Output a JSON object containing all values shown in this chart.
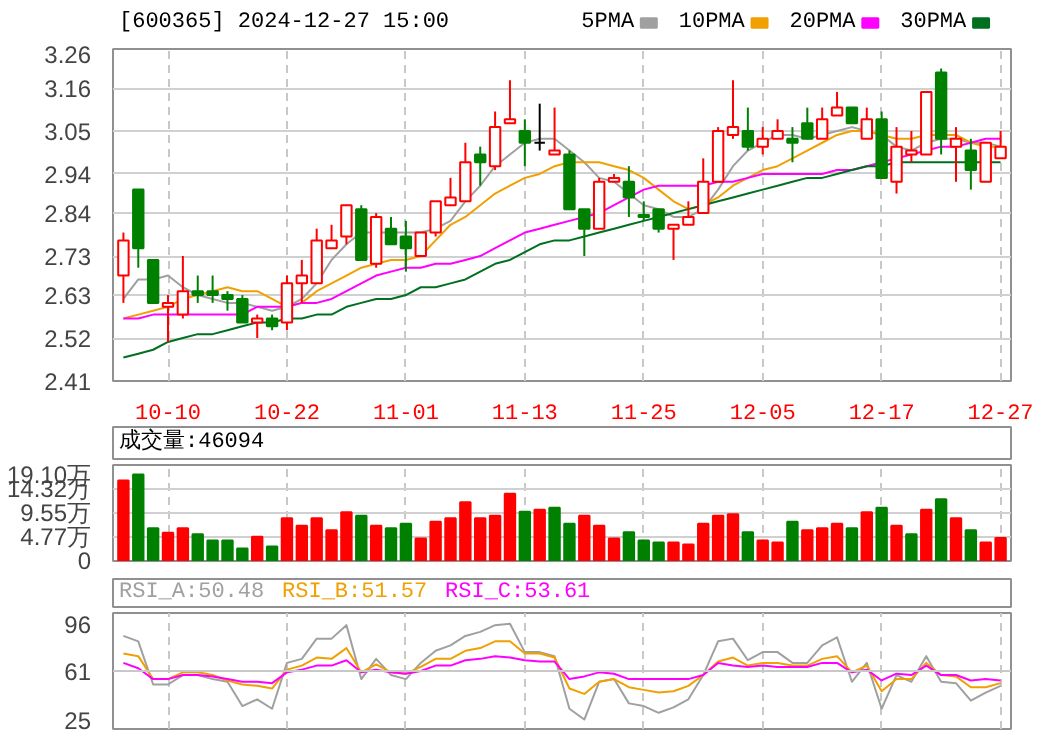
{
  "chart_data": [
    {
      "type": "candlestick",
      "title": "[600365] 2024-12-27 15:00",
      "categories": [
        null,
        null,
        null,
        "10-10",
        null,
        null,
        null,
        null,
        null,
        null,
        null,
        "10-22",
        null,
        null,
        null,
        null,
        null,
        null,
        null,
        "11-01",
        null,
        null,
        null,
        null,
        null,
        null,
        null,
        "11-13",
        null,
        null,
        null,
        null,
        null,
        null,
        null,
        "11-25",
        null,
        null,
        null,
        null,
        null,
        null,
        null,
        "12-05",
        null,
        null,
        null,
        null,
        null,
        null,
        null,
        "12-17",
        null,
        null,
        null,
        null,
        null,
        null,
        null,
        "12-27"
      ],
      "ohlc": [
        [
          2.68,
          2.79,
          2.61,
          2.77
        ],
        [
          2.9,
          2.9,
          2.7,
          2.75
        ],
        [
          2.72,
          2.72,
          2.61,
          2.61
        ],
        [
          2.6,
          2.63,
          2.51,
          2.61
        ],
        [
          2.58,
          2.73,
          2.57,
          2.64
        ],
        [
          2.64,
          2.68,
          2.61,
          2.63
        ],
        [
          2.64,
          2.68,
          2.61,
          2.63
        ],
        [
          2.63,
          2.64,
          2.59,
          2.62
        ],
        [
          2.62,
          2.63,
          2.56,
          2.56
        ],
        [
          2.56,
          2.58,
          2.52,
          2.57
        ],
        [
          2.57,
          2.58,
          2.54,
          2.55
        ],
        [
          2.56,
          2.68,
          2.54,
          2.66
        ],
        [
          2.66,
          2.72,
          2.61,
          2.68
        ],
        [
          2.66,
          2.8,
          2.66,
          2.77
        ],
        [
          2.75,
          2.81,
          2.75,
          2.77
        ],
        [
          2.78,
          2.86,
          2.76,
          2.86
        ],
        [
          2.85,
          2.86,
          2.72,
          2.72
        ],
        [
          2.71,
          2.84,
          2.7,
          2.83
        ],
        [
          2.8,
          2.83,
          2.76,
          2.76
        ],
        [
          2.78,
          2.82,
          2.69,
          2.75
        ],
        [
          2.73,
          2.79,
          2.73,
          2.79
        ],
        [
          2.79,
          2.87,
          2.78,
          2.87
        ],
        [
          2.86,
          2.93,
          2.86,
          2.88
        ],
        [
          2.87,
          3.02,
          2.87,
          2.97
        ],
        [
          2.99,
          3.01,
          2.91,
          2.97
        ],
        [
          2.96,
          3.1,
          2.95,
          3.06
        ],
        [
          3.07,
          3.18,
          3.07,
          3.08
        ],
        [
          3.05,
          3.08,
          2.96,
          3.02
        ],
        [
          3.02,
          3.12,
          3.0,
          3.02
        ],
        [
          2.99,
          3.11,
          2.99,
          3.0
        ],
        [
          2.99,
          3.0,
          2.85,
          2.85
        ],
        [
          2.85,
          2.85,
          2.73,
          2.8
        ],
        [
          2.8,
          2.93,
          2.8,
          2.92
        ],
        [
          2.92,
          2.94,
          2.92,
          2.93
        ],
        [
          2.92,
          2.96,
          2.83,
          2.88
        ],
        [
          2.835,
          2.87,
          2.82,
          2.83
        ],
        [
          2.85,
          2.85,
          2.79,
          2.8
        ],
        [
          2.8,
          2.81,
          2.72,
          2.81
        ],
        [
          2.81,
          2.87,
          2.81,
          2.83
        ],
        [
          2.84,
          2.98,
          2.84,
          2.92
        ],
        [
          2.92,
          3.06,
          2.92,
          3.05
        ],
        [
          3.04,
          3.18,
          3.03,
          3.06
        ],
        [
          3.05,
          3.11,
          3.0,
          3.01
        ],
        [
          3.01,
          3.06,
          2.99,
          3.03
        ],
        [
          3.03,
          3.08,
          3.03,
          3.05
        ],
        [
          3.03,
          3.06,
          2.97,
          3.02
        ],
        [
          3.07,
          3.11,
          3.03,
          3.03
        ],
        [
          3.03,
          3.11,
          3.03,
          3.08
        ],
        [
          3.09,
          3.15,
          3.09,
          3.11
        ],
        [
          3.11,
          3.11,
          3.07,
          3.07
        ],
        [
          3.03,
          3.11,
          3.03,
          3.08
        ],
        [
          3.08,
          3.1,
          2.93,
          2.93
        ],
        [
          2.92,
          3.06,
          2.89,
          3.01
        ],
        [
          2.99,
          3.05,
          2.97,
          3.0
        ],
        [
          2.99,
          3.15,
          2.99,
          3.15
        ],
        [
          3.2,
          3.21,
          2.99,
          3.03
        ],
        [
          3.01,
          3.06,
          2.92,
          3.03
        ],
        [
          3.0,
          3.03,
          2.9,
          2.95
        ],
        [
          2.92,
          3.02,
          2.92,
          3.02
        ],
        [
          2.98,
          3.05,
          2.98,
          3.01
        ]
      ],
      "colors": [
        "#ff0000",
        "#008000",
        "#008000",
        "#ff0000",
        "#ff0000",
        "#008000",
        "#008000",
        "#008000",
        "#008000",
        "#ff0000",
        "#008000",
        "#ff0000",
        "#ff0000",
        "#ff0000",
        "#ff0000",
        "#ff0000",
        "#008000",
        "#ff0000",
        "#008000",
        "#008000",
        "#ff0000",
        "#ff0000",
        "#ff0000",
        "#ff0000",
        "#008000",
        "#ff0000",
        "#ff0000",
        "#008000",
        "#000000",
        "#ff0000",
        "#008000",
        "#008000",
        "#ff0000",
        "#ff0000",
        "#008000",
        "#008000",
        "#008000",
        "#ff0000",
        "#ff0000",
        "#ff0000",
        "#ff0000",
        "#ff0000",
        "#008000",
        "#ff0000",
        "#ff0000",
        "#008000",
        "#008000",
        "#ff0000",
        "#ff0000",
        "#008000",
        "#ff0000",
        "#008000",
        "#ff0000",
        "#ff0000",
        "#ff0000",
        "#008000",
        "#ff0000",
        "#008000",
        "#ff0000",
        "#ff0000"
      ],
      "ylim": [
        2.41,
        3.26
      ],
      "yticks": [
        2.41,
        2.52,
        2.63,
        2.73,
        2.84,
        2.94,
        3.05,
        3.16,
        3.26
      ],
      "grid": true,
      "legend": "top right",
      "series": [
        {
          "name": "5PMA",
          "type": "line",
          "color": "#a0a0a0",
          "values": [
            2.62,
            2.67,
            2.67,
            2.68,
            2.65,
            2.63,
            2.62,
            2.61,
            2.61,
            2.6,
            2.59,
            2.6,
            2.62,
            2.66,
            2.72,
            2.76,
            2.79,
            2.79,
            2.79,
            2.79,
            2.79,
            2.8,
            2.82,
            2.87,
            2.91,
            2.96,
            2.99,
            3.02,
            3.03,
            3.03,
            3.0,
            2.97,
            2.93,
            2.92,
            2.89,
            2.86,
            2.85,
            2.83,
            2.83,
            2.85,
            2.9,
            2.96,
            3.0,
            3.02,
            3.04,
            3.04,
            3.03,
            3.04,
            3.05,
            3.06,
            3.05,
            3.04,
            3.01,
            3.0,
            3.02,
            3.03,
            3.03,
            3.02,
            3.02,
            3.01
          ]
        },
        {
          "name": "10PMA",
          "type": "line",
          "color": "#f0a000",
          "values": [
            2.57,
            2.58,
            2.59,
            2.6,
            2.62,
            2.63,
            2.64,
            2.65,
            2.64,
            2.64,
            2.62,
            2.6,
            2.61,
            2.64,
            2.66,
            2.68,
            2.7,
            2.71,
            2.72,
            2.72,
            2.73,
            2.77,
            2.81,
            2.83,
            2.86,
            2.89,
            2.91,
            2.93,
            2.94,
            2.96,
            2.97,
            2.97,
            2.97,
            2.96,
            2.95,
            2.93,
            2.9,
            2.87,
            2.85,
            2.86,
            2.88,
            2.91,
            2.93,
            2.95,
            2.96,
            2.98,
            3.0,
            3.02,
            3.04,
            3.05,
            3.05,
            3.04,
            3.03,
            3.03,
            3.04,
            3.04,
            3.04,
            3.02,
            3.01,
            3.01
          ]
        },
        {
          "name": "20PMA",
          "type": "line",
          "color": "#ff00ff",
          "values": [
            2.57,
            2.57,
            2.58,
            2.58,
            2.58,
            2.58,
            2.58,
            2.58,
            2.58,
            2.6,
            2.6,
            2.6,
            2.61,
            2.61,
            2.62,
            2.64,
            2.66,
            2.68,
            2.69,
            2.7,
            2.7,
            2.71,
            2.71,
            2.72,
            2.73,
            2.75,
            2.77,
            2.79,
            2.8,
            2.81,
            2.82,
            2.83,
            2.84,
            2.86,
            2.88,
            2.9,
            2.91,
            2.91,
            2.91,
            2.91,
            2.92,
            2.92,
            2.93,
            2.94,
            2.94,
            2.94,
            2.94,
            2.94,
            2.95,
            2.95,
            2.96,
            2.97,
            2.98,
            2.99,
            3.0,
            3.01,
            3.01,
            3.02,
            3.03,
            3.03
          ]
        },
        {
          "name": "30PMA",
          "type": "line",
          "color": "#007020",
          "values": [
            2.47,
            2.48,
            2.49,
            2.51,
            2.52,
            2.53,
            2.53,
            2.54,
            2.55,
            2.56,
            2.56,
            2.57,
            2.57,
            2.58,
            2.58,
            2.6,
            2.61,
            2.62,
            2.62,
            2.63,
            2.65,
            2.65,
            2.66,
            2.67,
            2.69,
            2.71,
            2.72,
            2.74,
            2.76,
            2.77,
            2.77,
            2.78,
            2.79,
            2.8,
            2.81,
            2.82,
            2.83,
            2.84,
            2.85,
            2.86,
            2.87,
            2.88,
            2.89,
            2.9,
            2.91,
            2.92,
            2.93,
            2.93,
            2.94,
            2.95,
            2.96,
            2.96,
            2.97,
            2.97,
            2.97,
            2.97,
            2.97,
            2.97,
            2.97,
            2.97
          ]
        }
      ]
    },
    {
      "type": "bar",
      "annotations": [
        "成交量:46094"
      ],
      "categories": [
        null,
        null,
        null,
        null,
        null,
        null,
        null,
        null,
        null,
        null,
        null,
        null,
        null,
        null,
        null,
        null,
        null,
        null,
        null,
        null,
        null,
        null,
        null,
        null,
        null,
        null,
        null,
        null,
        null,
        null,
        null,
        null,
        null,
        null,
        null,
        null,
        null,
        null,
        null,
        null,
        null,
        null,
        null,
        null,
        null,
        null,
        null,
        null,
        null,
        null,
        null,
        null,
        null,
        null,
        null,
        null,
        null,
        null,
        null,
        null
      ],
      "values": [
        16.0,
        17.2,
        6.5,
        5.6,
        6.5,
        5.3,
        4.1,
        4.1,
        2.5,
        4.8,
        2.9,
        8.5,
        7.0,
        8.5,
        6.1,
        9.7,
        9.0,
        7.0,
        6.5,
        7.4,
        4.5,
        7.8,
        8.5,
        11.7,
        8.5,
        9.0,
        13.4,
        9.8,
        10.2,
        10.6,
        7.4,
        9.0,
        7.0,
        4.5,
        5.7,
        4.1,
        3.7,
        3.7,
        3.3,
        7.4,
        9.0,
        9.3,
        5.7,
        4.1,
        3.7,
        7.8,
        6.1,
        6.5,
        7.4,
        6.5,
        9.7,
        10.6,
        7.0,
        5.3,
        10.2,
        12.3,
        8.5,
        6.1,
        3.7,
        4.6
      ],
      "colors": [
        "#ff0000",
        "#008000",
        "#008000",
        "#ff0000",
        "#ff0000",
        "#008000",
        "#008000",
        "#008000",
        "#008000",
        "#ff0000",
        "#008000",
        "#ff0000",
        "#ff0000",
        "#ff0000",
        "#ff0000",
        "#ff0000",
        "#008000",
        "#ff0000",
        "#008000",
        "#008000",
        "#ff0000",
        "#ff0000",
        "#ff0000",
        "#ff0000",
        "#ff0000",
        "#ff0000",
        "#ff0000",
        "#008000",
        "#ff0000",
        "#008000",
        "#008000",
        "#ff0000",
        "#ff0000",
        "#ff0000",
        "#008000",
        "#008000",
        "#008000",
        "#ff0000",
        "#ff0000",
        "#ff0000",
        "#ff0000",
        "#ff0000",
        "#008000",
        "#ff0000",
        "#ff0000",
        "#008000",
        "#ff0000",
        "#ff0000",
        "#ff0000",
        "#008000",
        "#ff0000",
        "#008000",
        "#ff0000",
        "#008000",
        "#ff0000",
        "#008000",
        "#ff0000",
        "#008000",
        "#ff0000",
        "#ff0000"
      ],
      "ylim": [
        0,
        19.1
      ],
      "yticks": [
        0,
        {
          "value": 4.77,
          "label": "4.77万"
        },
        {
          "value": 9.55,
          "label": "9.55万"
        },
        {
          "value": 14.32,
          "label": "14.32万"
        },
        {
          "value": 19.1,
          "label": "19.10万"
        }
      ],
      "grid": true,
      "tick_labels": "y"
    },
    {
      "type": "line",
      "categories": [
        null,
        null,
        null,
        null,
        null,
        null,
        null,
        null,
        null,
        null,
        null,
        null,
        null,
        null,
        null,
        null,
        null,
        null,
        null,
        null,
        null,
        null,
        null,
        null,
        null,
        null,
        null,
        null,
        null,
        null,
        null,
        null,
        null,
        null,
        null,
        null,
        null,
        null,
        null,
        null,
        null,
        null,
        null,
        null,
        null,
        null,
        null,
        null,
        null,
        null,
        null,
        null,
        null,
        null,
        null,
        null,
        null,
        null,
        null,
        null
      ],
      "ylim": [
        18,
        104
      ],
      "yticks": [
        25,
        61,
        96
      ],
      "grid": "x",
      "tick_labels": "y",
      "ref_lines": [
        {
          "axis": "y",
          "value": 61,
          "color": "#c8c8c8"
        }
      ],
      "series": [
        {
          "name": "RSI_A:50.48",
          "color": "#a0a0a0",
          "values": [
            87,
            83,
            51,
            51,
            58,
            58,
            55,
            53,
            35,
            40,
            33,
            67,
            70,
            85,
            85,
            95,
            55,
            70,
            58,
            55,
            67,
            76,
            80,
            87,
            90,
            95,
            96,
            75,
            75,
            72,
            33,
            25,
            53,
            55,
            37,
            35,
            30,
            34,
            40,
            58,
            83,
            85,
            69,
            75,
            75,
            67,
            67,
            80,
            86,
            53,
            67,
            33,
            58,
            53,
            72,
            53,
            52,
            39,
            45,
            50
          ]
        },
        {
          "name": "RSI_B:51.57",
          "color": "#f0a000",
          "values": [
            74,
            72,
            55,
            55,
            60,
            60,
            58,
            54,
            51,
            50,
            48,
            62,
            65,
            71,
            70,
            78,
            60,
            66,
            60,
            59,
            64,
            70,
            70,
            76,
            78,
            83,
            83,
            74,
            74,
            71,
            48,
            44,
            53,
            55,
            49,
            47,
            45,
            46,
            50,
            58,
            68,
            71,
            65,
            67,
            67,
            65,
            65,
            70,
            72,
            60,
            65,
            46,
            55,
            55,
            67,
            58,
            57,
            49,
            49,
            52
          ]
        },
        {
          "name": "RSI_C:53.61",
          "color": "#ff00ff",
          "values": [
            67,
            63,
            55,
            55,
            58,
            58,
            57,
            55,
            53,
            53,
            52,
            60,
            62,
            65,
            65,
            69,
            60,
            62,
            60,
            59,
            61,
            65,
            65,
            69,
            70,
            72,
            71,
            69,
            68,
            68,
            55,
            57,
            60,
            59,
            55,
            55,
            55,
            55,
            55,
            58,
            67,
            65,
            64,
            65,
            64,
            64,
            64,
            67,
            67,
            60,
            62,
            54,
            59,
            58,
            65,
            58,
            58,
            54,
            55,
            54
          ]
        }
      ]
    }
  ]
}
